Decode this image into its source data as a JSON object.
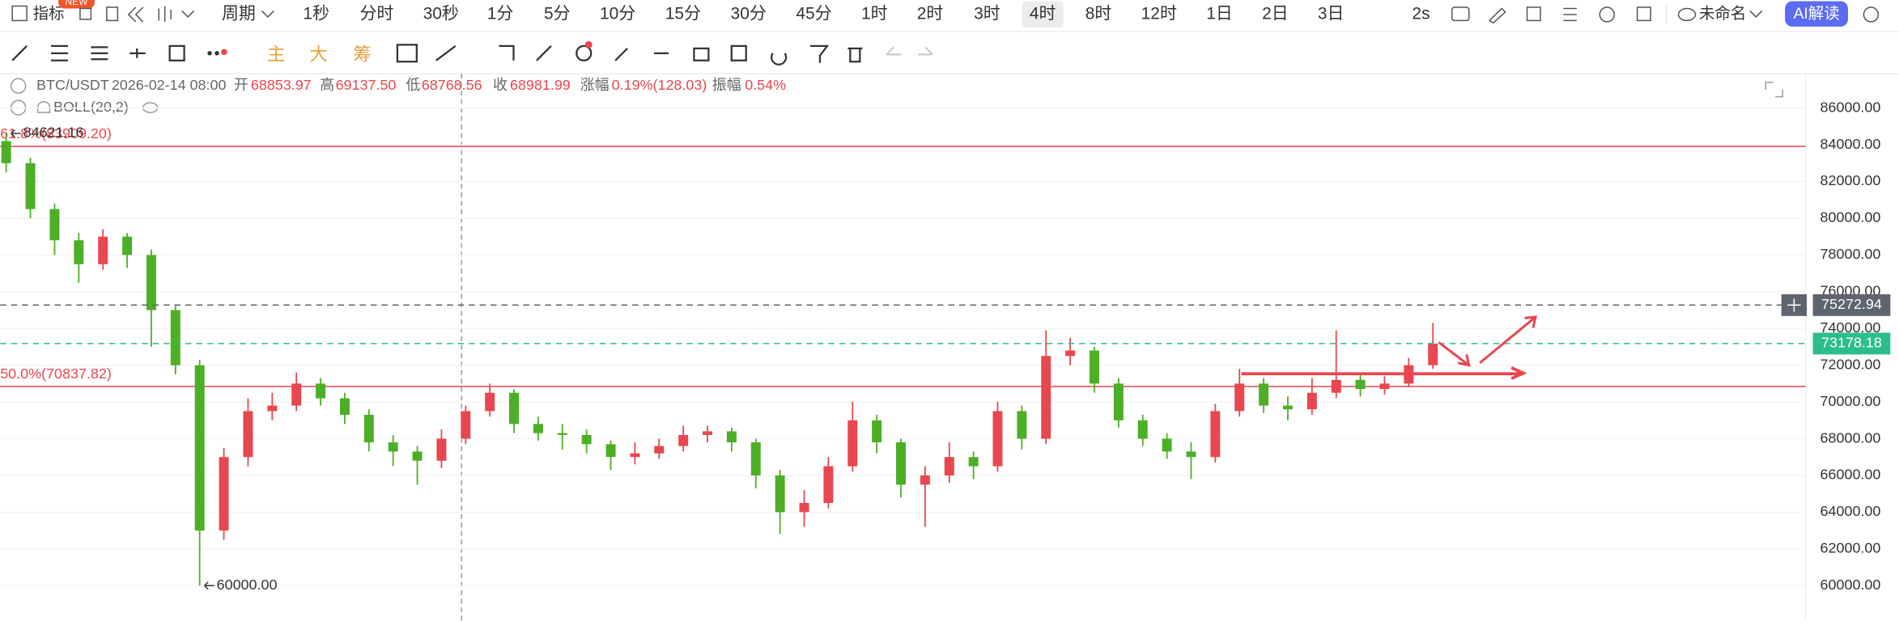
{
  "toolbar": {
    "indicator": "指标",
    "badge": "NEW",
    "period": "周期",
    "intervals": [
      "1秒",
      "分时",
      "30秒",
      "1分",
      "5分",
      "10分",
      "15分",
      "30分",
      "45分",
      "1时",
      "2时",
      "3时",
      "4时",
      "8时",
      "12时",
      "1日",
      "2日",
      "3日"
    ],
    "selected_interval": 12,
    "refresh": "2s",
    "layout_name": "未命名",
    "ai_button": "AI解读"
  },
  "drawing_tools": [
    "主",
    "大",
    "筹"
  ],
  "info": {
    "symbol": "BTC/USDT",
    "time": "2026-02-14 08:00",
    "open_label": "开",
    "open": "68853.97",
    "high_label": "高",
    "high": "69137.50",
    "low_label": "低",
    "low": "68768.56",
    "close_label": "收",
    "close": "68981.99",
    "change_label": "涨幅",
    "change": "0.19%(128.03)",
    "amplitude_label": "振幅",
    "amplitude": "0.54%"
  },
  "indicator": "BOLL(20,2)",
  "chart_data": {
    "type": "candlestick",
    "up_color": "#e8474f",
    "down_color": "#4caf26",
    "grid": true,
    "open": [
      84200,
      83000,
      80500,
      78800,
      77500,
      79000,
      78000,
      75000,
      72000,
      63000,
      67000,
      69500,
      69800,
      71000,
      70200,
      69300,
      67800,
      67300,
      66800,
      68000,
      69500,
      70500,
      68800,
      68300,
      68200,
      67700,
      67000,
      67200,
      67600,
      68200,
      68400,
      67800,
      66000,
      64000,
      64500,
      66500,
      69000,
      67800,
      65500,
      66000,
      67000,
      66500,
      69500,
      68000,
      72500,
      72800,
      71000,
      69000,
      68000,
      67300,
      67000,
      69500,
      71000,
      69800,
      69600,
      70500,
      71200,
      70700,
      71000,
      72000
    ],
    "high": [
      84621.16,
      83300,
      80800,
      79200,
      79400,
      79200,
      78300,
      75300,
      72300,
      67500,
      70200,
      70500,
      71600,
      71300,
      70500,
      69600,
      68200,
      67600,
      68500,
      69800,
      71000,
      70700,
      69200,
      68800,
      68500,
      67900,
      67800,
      68000,
      68700,
      68700,
      68600,
      68000,
      66300,
      65200,
      67000,
      70000,
      69300,
      68000,
      66500,
      67800,
      67300,
      70000,
      69800,
      73900,
      73500,
      73000,
      71300,
      69300,
      68300,
      67800,
      69900,
      71800,
      71300,
      70300,
      71300,
      73900,
      71500,
      71400,
      72400,
      74300
    ],
    "low": [
      82500,
      80000,
      78000,
      76500,
      77200,
      77300,
      73000,
      71500,
      60000,
      62500,
      66500,
      69000,
      69500,
      69800,
      68800,
      67300,
      66500,
      65500,
      66400,
      67700,
      69200,
      68300,
      67900,
      67400,
      67200,
      66300,
      66600,
      66900,
      67300,
      67800,
      67300,
      65300,
      62800,
      63200,
      64200,
      66200,
      67200,
      64800,
      63200,
      65600,
      65800,
      66200,
      67400,
      67700,
      72000,
      70500,
      68600,
      67600,
      66900,
      65800,
      66700,
      69200,
      69400,
      69000,
      69300,
      70200,
      70300,
      70400,
      70800,
      71800
    ],
    "close": [
      83000,
      80500,
      78800,
      77500,
      79000,
      78000,
      75000,
      72000,
      63000,
      67000,
      69500,
      69800,
      71000,
      70200,
      69300,
      67800,
      67300,
      66800,
      68000,
      69500,
      70500,
      68800,
      68300,
      68200,
      67700,
      67000,
      67200,
      67600,
      68200,
      68400,
      67800,
      66000,
      64000,
      64500,
      66500,
      69000,
      67800,
      65500,
      66000,
      67000,
      66500,
      69500,
      68000,
      72500,
      72800,
      71000,
      69000,
      68000,
      67300,
      67000,
      69500,
      71000,
      69800,
      69600,
      70500,
      71200,
      70700,
      71000,
      72000,
      73178.18
    ],
    "ylim": [
      58100,
      87800
    ],
    "yticks": [
      {
        "value": 60000,
        "label": "60000.00"
      },
      {
        "value": 62000,
        "label": "62000.00"
      },
      {
        "value": 64000,
        "label": "64000.00"
      },
      {
        "value": 66000,
        "label": "66000.00"
      },
      {
        "value": 68000,
        "label": "68000.00"
      },
      {
        "value": 70000,
        "label": "70000.00"
      },
      {
        "value": 72000,
        "label": "72000.00"
      },
      {
        "value": 74000,
        "label": "74000.00"
      },
      {
        "value": 76000,
        "label": "76000.00"
      },
      {
        "value": 78000,
        "label": "78000.00"
      },
      {
        "value": 80000,
        "label": "80000.00"
      },
      {
        "value": 82000,
        "label": "82000.00"
      },
      {
        "value": 84000,
        "label": "84000.00"
      },
      {
        "value": 86000,
        "label": "86000.00"
      }
    ],
    "fib_lines": [
      {
        "label": "61.8%(83909.20)",
        "value": 83909.2
      },
      {
        "label": "50.0%(70837.82)",
        "value": 70837.82
      }
    ],
    "crosshair_price": 75272.94,
    "low_label": "60000.00"
  }
}
